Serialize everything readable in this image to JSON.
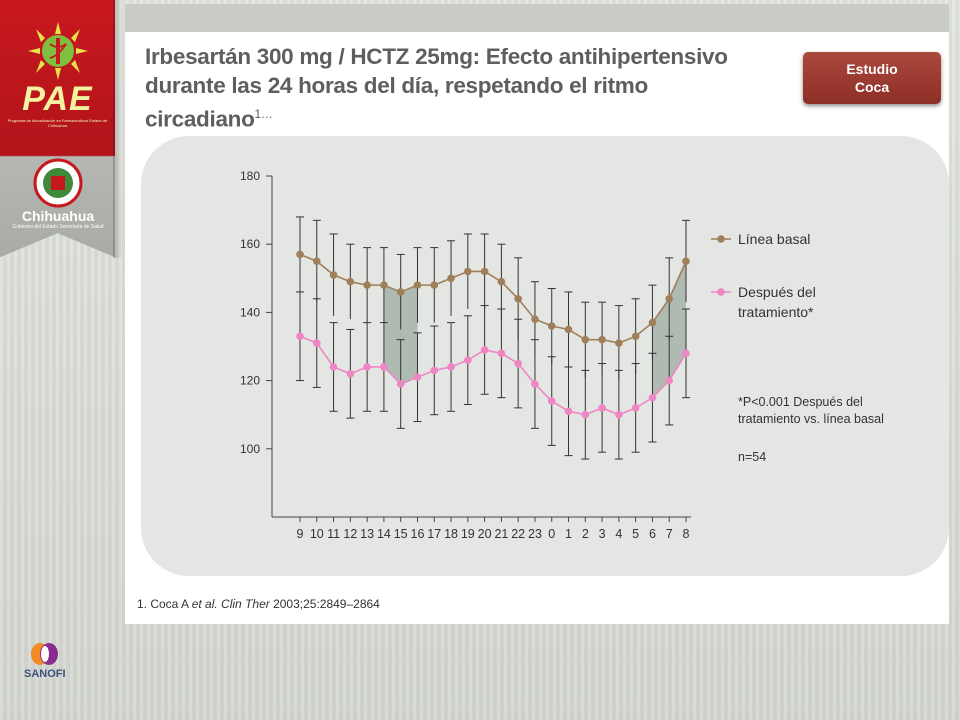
{
  "header": {
    "title_line1": "Irbesartán 300 mg / HCTZ 25mg: Efecto antihipertensivo",
    "title_line2": "durante las 24 horas del día, respetando el ritmo",
    "title_line3": "circadiano",
    "title_sup": "1…",
    "study_line1": "Estudio",
    "study_line2": "Coca"
  },
  "branding": {
    "pae": "PAE",
    "pae_subtitle": "Programa de Actualización en Farmacéuticos Estado de Chihuahua",
    "chihuahua": "Chihuahua",
    "chihuahua_subtitle": "Gobierno del Estado Secretaría de Salud",
    "sanofi": "SANOFI",
    "ribbon_color": "#c8181f"
  },
  "chart_data": {
    "type": "line",
    "x": [
      "9",
      "10",
      "11",
      "12",
      "13",
      "14",
      "15",
      "16",
      "17",
      "18",
      "19",
      "20",
      "21",
      "22",
      "23",
      "0",
      "1",
      "2",
      "3",
      "4",
      "5",
      "6",
      "7",
      "8"
    ],
    "yticks": [
      100,
      120,
      140,
      160,
      180
    ],
    "ylim": [
      80,
      180
    ],
    "series": [
      {
        "name": "Línea basal",
        "color": "#a0805a",
        "values": [
          157,
          155,
          151,
          149,
          148,
          148,
          146,
          148,
          148,
          150,
          152,
          152,
          149,
          144,
          138,
          136,
          135,
          132,
          132,
          131,
          133,
          137,
          144,
          155
        ],
        "err": [
          11,
          12,
          12,
          11,
          11,
          11,
          11,
          11,
          11,
          11,
          11,
          11,
          11,
          12,
          11,
          11,
          11,
          11,
          11,
          11,
          11,
          11,
          12,
          12
        ]
      },
      {
        "name": "Después del tratamiento*",
        "color": "#ef86c4",
        "values": [
          133,
          131,
          124,
          122,
          124,
          124,
          119,
          121,
          123,
          124,
          126,
          129,
          128,
          125,
          119,
          114,
          111,
          110,
          112,
          110,
          112,
          115,
          120,
          128
        ],
        "err": [
          13,
          13,
          13,
          13,
          13,
          13,
          13,
          13,
          13,
          13,
          13,
          13,
          13,
          13,
          13,
          13,
          13,
          13,
          13,
          13,
          13,
          13,
          13,
          13
        ]
      }
    ],
    "shaded_regions": [
      {
        "from": "14",
        "to": "16",
        "color": "#a9b5ad"
      },
      {
        "from": "6",
        "to": "8",
        "color": "#a9b5ad"
      }
    ],
    "legend": [
      "Línea basal",
      "Después del tratamiento*"
    ],
    "legend_line2": [
      "",
      "tratamiento*"
    ],
    "legend_line1": [
      "Línea basal",
      "Después del"
    ],
    "annotations": {
      "significance_line1": "*P<0.001 Después del",
      "significance_line2": "tratamiento vs. línea basal",
      "n": "n=54"
    }
  },
  "footnote": {
    "prefix": "1. Coca A ",
    "italic": "et al. Clin Ther",
    "suffix": " 2003;25:2849–2864"
  }
}
